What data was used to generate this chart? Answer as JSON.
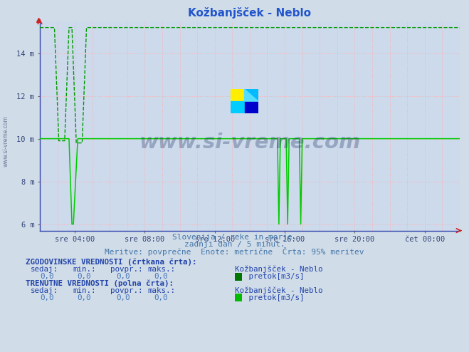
{
  "title": "Kožbanjšček - Neblo",
  "title_color": "#2255cc",
  "bg_color": "#d0dce8",
  "plot_bg_color": "#ccdaec",
  "xlim": [
    0,
    288
  ],
  "ylim": [
    5.7,
    15.5
  ],
  "yticks": [
    6,
    8,
    10,
    12,
    14
  ],
  "ytick_labels": [
    "6 m",
    "8 m",
    "10 m",
    "12 m",
    "14 m"
  ],
  "xtick_positions": [
    24,
    72,
    120,
    168,
    216,
    264
  ],
  "xtick_labels": [
    "sre 04:00",
    "sre 08:00",
    "sre 12:00",
    "sre 16:00",
    "sre 20:00",
    "čet 00:00"
  ],
  "grid_color": "#ffb0b0",
  "line_color_hist": "#009900",
  "line_color_curr": "#00cc00",
  "subtitle1": "Slovenija / reke in morje.",
  "subtitle2": "zadnji dan / 5 minut.",
  "subtitle3": "Meritve: povprečne  Enote: metrične  Črta: 95% meritev",
  "label_hist_bold": "ZGODOVINSKE VREDNOSTI (črtkana črta):",
  "label_curr_bold": "TRENUTNE VREDNOSTI (polna črta):",
  "col_headers": "  sedaj:      min.:      povpr.:      maks.:     Kožbanjšček - Neblo",
  "values_row": "    0,0          0,0          0,0            0,0",
  "legend_label": " pretok[m3/s]",
  "legend_color1": "#007700",
  "legend_color2": "#00bb00",
  "watermark": "www.si-vreme.com",
  "watermark_color": "#1a3060",
  "watermark_alpha": 0.3,
  "sidebar_text": "www.si-vreme.com"
}
